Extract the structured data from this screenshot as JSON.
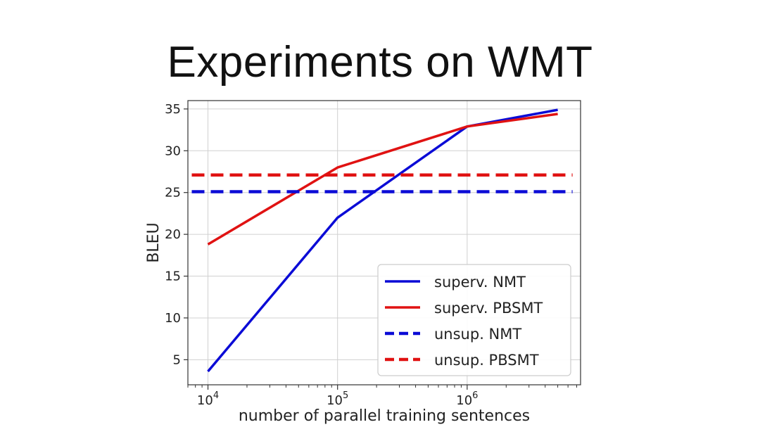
{
  "slide": {
    "title": "Experiments on WMT"
  },
  "chart_data": {
    "type": "line",
    "title": "",
    "xlabel": "number of parallel training sentences",
    "ylabel": "BLEU",
    "xscale": "log",
    "xlim": [
      7000,
      7500000
    ],
    "ylim": [
      2,
      36
    ],
    "xticks": [
      {
        "value": 10000,
        "base": "10",
        "exp": "4"
      },
      {
        "value": 100000,
        "base": "10",
        "exp": "5"
      },
      {
        "value": 1000000,
        "base": "10",
        "exp": "6"
      }
    ],
    "yticks": [
      5,
      10,
      15,
      20,
      25,
      30,
      35
    ],
    "grid": true,
    "legend_position": "bottom-right",
    "series": [
      {
        "name": "superv. NMT",
        "color": "#0b0bd6",
        "style": "solid",
        "x": [
          10000,
          100000,
          1000000,
          5000000
        ],
        "y": [
          3.6,
          22.0,
          32.9,
          34.9
        ]
      },
      {
        "name": "superv. PBSMT",
        "color": "#e01212",
        "style": "solid",
        "x": [
          10000,
          100000,
          1000000,
          5000000
        ],
        "y": [
          18.8,
          28.0,
          32.9,
          34.4
        ]
      },
      {
        "name": "unsup. NMT",
        "color": "#0b0bd6",
        "style": "dashed",
        "x": [
          7500,
          6500000
        ],
        "y": [
          25.1,
          25.1
        ]
      },
      {
        "name": "unsup. PBSMT",
        "color": "#e01212",
        "style": "dashed",
        "x": [
          7500,
          6500000
        ],
        "y": [
          27.1,
          27.1
        ]
      }
    ]
  }
}
